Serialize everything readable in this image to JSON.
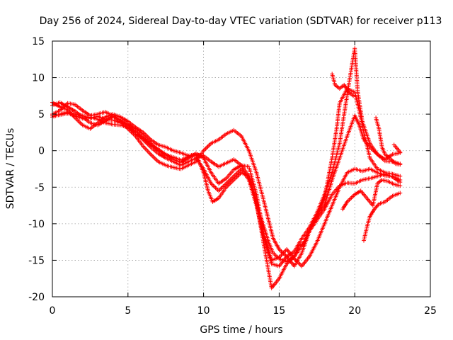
{
  "chart_data": {
    "type": "scatter",
    "title": "Day 256 of 2024, Sidereal Day-to-day VTEC variation (SDTVAR) for receiver p113",
    "xlabel": "GPS time / hours",
    "ylabel": "SDTVAR / TECUs",
    "xlim": [
      0,
      25
    ],
    "ylim": [
      -20,
      15
    ],
    "x_ticks": [
      0,
      5,
      10,
      15,
      20,
      25
    ],
    "y_ticks": [
      -20,
      -15,
      -10,
      -5,
      0,
      5,
      10,
      15
    ],
    "x_tick_labels": [
      "0",
      "5",
      "10",
      "15",
      "20",
      "25"
    ],
    "y_tick_labels": [
      "-20",
      "-15",
      "-10",
      "-5",
      "0",
      "5",
      "10",
      "15"
    ],
    "grid": true,
    "marker": "+",
    "color": "#ff0000",
    "series": [
      {
        "points": [
          [
            0,
            4.6
          ],
          [
            0.5,
            5.0
          ],
          [
            1,
            5.3
          ],
          [
            1.5,
            5.0
          ],
          [
            2,
            4.8
          ],
          [
            2.5,
            4.4
          ],
          [
            3,
            4.7
          ],
          [
            3.5,
            4.3
          ],
          [
            4,
            4.2
          ],
          [
            4.5,
            3.8
          ],
          [
            5,
            3.6
          ],
          [
            5.5,
            2.3
          ],
          [
            6,
            1.7
          ],
          [
            6.5,
            0.8
          ],
          [
            7,
            0.2
          ],
          [
            7.5,
            -0.6
          ],
          [
            8,
            -0.9
          ],
          [
            8.5,
            -1.3
          ],
          [
            9,
            -0.8
          ],
          [
            9.5,
            -0.5
          ],
          [
            10,
            -0.7
          ],
          [
            10.5,
            -1.5
          ],
          [
            11,
            -2.2
          ],
          [
            11.5,
            -1.7
          ],
          [
            12,
            -1.2
          ],
          [
            12.5,
            -2.0
          ],
          [
            13,
            -3.5
          ],
          [
            13.3,
            -5.5
          ],
          [
            13.6,
            -8.0
          ],
          [
            14,
            -10.5
          ],
          [
            14.3,
            -12.5
          ],
          [
            14.6,
            -14.0
          ],
          [
            15,
            -14.8
          ],
          [
            15.5,
            -15.2
          ],
          [
            16,
            -14.5
          ],
          [
            16.3,
            -13.0
          ],
          [
            16.6,
            -12.8
          ],
          [
            17,
            -11.0
          ],
          [
            17.5,
            -9.0
          ],
          [
            18,
            -7.5
          ],
          [
            18.5,
            -4.0
          ],
          [
            19,
            -1.0
          ],
          [
            19.5,
            2.0
          ],
          [
            20,
            4.8
          ],
          [
            20.3,
            3.5
          ],
          [
            20.6,
            1.5
          ],
          [
            21,
            0.5
          ],
          [
            21.5,
            -0.5
          ],
          [
            22,
            -1.4
          ],
          [
            22.5,
            -1.5
          ],
          [
            23,
            -1.8
          ]
        ]
      },
      {
        "points": [
          [
            0,
            6.2
          ],
          [
            0.5,
            6.6
          ],
          [
            1,
            6.0
          ],
          [
            1.5,
            5.4
          ],
          [
            2,
            4.6
          ],
          [
            2.5,
            3.8
          ],
          [
            3,
            3.5
          ],
          [
            3.5,
            4.1
          ],
          [
            4,
            4.7
          ],
          [
            4.5,
            4.2
          ],
          [
            5,
            3.5
          ],
          [
            5.5,
            3.0
          ],
          [
            6,
            2.0
          ],
          [
            6.5,
            1.0
          ],
          [
            7,
            0.0
          ],
          [
            7.5,
            -0.5
          ],
          [
            8,
            -1.2
          ],
          [
            8.5,
            -1.6
          ],
          [
            9,
            -1.0
          ],
          [
            9.5,
            -0.4
          ],
          [
            10,
            -1.0
          ],
          [
            10.5,
            -3.0
          ],
          [
            11,
            -4.5
          ],
          [
            11.5,
            -3.8
          ],
          [
            12,
            -2.6
          ],
          [
            12.5,
            -2.0
          ],
          [
            13,
            -2.2
          ],
          [
            13.5,
            -6.0
          ],
          [
            14,
            -11.5
          ],
          [
            14.5,
            -15.0
          ],
          [
            15,
            -14.6
          ],
          [
            15.5,
            -13.5
          ],
          [
            16,
            -14.8
          ],
          [
            16.5,
            -15.8
          ],
          [
            17,
            -14.5
          ],
          [
            17.5,
            -12.5
          ],
          [
            18,
            -10.0
          ],
          [
            18.5,
            -7.5
          ],
          [
            19,
            -5.0
          ],
          [
            19.5,
            -3.0
          ],
          [
            20,
            -2.5
          ],
          [
            20.5,
            -2.8
          ],
          [
            21,
            -2.5
          ],
          [
            21.5,
            -3.0
          ],
          [
            22,
            -3.4
          ],
          [
            22.5,
            -3.5
          ],
          [
            23,
            -4.0
          ]
        ]
      },
      {
        "points": [
          [
            0,
            6.6
          ],
          [
            0.5,
            6.0
          ],
          [
            1,
            5.6
          ],
          [
            1.5,
            4.5
          ],
          [
            2,
            3.5
          ],
          [
            2.5,
            3.0
          ],
          [
            3,
            3.8
          ],
          [
            3.5,
            4.6
          ],
          [
            4,
            5.0
          ],
          [
            4.5,
            4.6
          ],
          [
            5,
            4.0
          ],
          [
            5.5,
            3.2
          ],
          [
            6,
            2.5
          ],
          [
            6.5,
            1.5
          ],
          [
            7,
            0.8
          ],
          [
            7.5,
            0.5
          ],
          [
            8,
            0.0
          ],
          [
            8.5,
            -0.3
          ],
          [
            9,
            -0.7
          ],
          [
            9.5,
            -0.5
          ],
          [
            10,
            -3.0
          ],
          [
            10.3,
            -5.5
          ],
          [
            10.6,
            -7.0
          ],
          [
            11,
            -6.5
          ],
          [
            11.5,
            -5.0
          ],
          [
            12,
            -4.0
          ],
          [
            12.5,
            -3.0
          ],
          [
            13,
            -3.5
          ],
          [
            13.5,
            -7.0
          ],
          [
            14,
            -13.0
          ],
          [
            14.5,
            -18.8
          ],
          [
            15,
            -17.5
          ],
          [
            15.5,
            -15.5
          ],
          [
            16,
            -14.5
          ],
          [
            16.5,
            -13.0
          ],
          [
            17,
            -11.0
          ],
          [
            17.5,
            -9.5
          ],
          [
            18,
            -8.0
          ],
          [
            18.5,
            -6.0
          ],
          [
            19,
            -4.8
          ],
          [
            19.5,
            -4.4
          ],
          [
            20,
            -4.5
          ],
          [
            20.5,
            -4.0
          ],
          [
            21,
            -3.8
          ],
          [
            21.5,
            -3.5
          ],
          [
            22,
            -3.2
          ],
          [
            22.5,
            -3.6
          ],
          [
            23,
            -4.3
          ]
        ]
      },
      {
        "points": [
          [
            0,
            4.8
          ],
          [
            0.5,
            4.9
          ],
          [
            1,
            5.1
          ],
          [
            1.5,
            4.8
          ],
          [
            2,
            4.4
          ],
          [
            2.5,
            4.6
          ],
          [
            3,
            4.3
          ],
          [
            3.5,
            3.8
          ],
          [
            4,
            3.6
          ],
          [
            4.5,
            3.5
          ],
          [
            5,
            3.2
          ],
          [
            5.5,
            2.6
          ],
          [
            6,
            1.5
          ],
          [
            6.5,
            0.5
          ],
          [
            7,
            -0.4
          ],
          [
            7.5,
            -1.0
          ],
          [
            8,
            -1.5
          ],
          [
            8.5,
            -2.0
          ],
          [
            9,
            -1.5
          ],
          [
            9.5,
            -1.0
          ],
          [
            10,
            -2.5
          ],
          [
            10.5,
            -4.5
          ],
          [
            11,
            -5.5
          ],
          [
            11.5,
            -4.5
          ],
          [
            12,
            -3.5
          ],
          [
            12.5,
            -2.5
          ],
          [
            13,
            -4.0
          ],
          [
            13.5,
            -7.5
          ],
          [
            14,
            -12.0
          ],
          [
            14.5,
            -15.5
          ],
          [
            15,
            -15.8
          ],
          [
            15.5,
            -14.5
          ],
          [
            16,
            -13.8
          ],
          [
            16.5,
            -12.0
          ],
          [
            17,
            -10.5
          ],
          [
            17.5,
            -8.5
          ],
          [
            18,
            -6.0
          ],
          [
            18.5,
            -3.0
          ],
          [
            19,
            1.0
          ],
          [
            19.3,
            5.0
          ],
          [
            19.6,
            9.0
          ],
          [
            20,
            14.0
          ],
          [
            20.2,
            8.0
          ],
          [
            20.5,
            4.0
          ],
          [
            21,
            1.0
          ],
          [
            21.5,
            -0.5
          ],
          [
            22,
            -1.2
          ],
          [
            22.5,
            -0.5
          ],
          [
            23,
            -0.3
          ]
        ]
      },
      {
        "points": [
          [
            0,
            5.0
          ],
          [
            0.5,
            5.5
          ],
          [
            1,
            6.5
          ],
          [
            1.5,
            6.3
          ],
          [
            2,
            5.5
          ],
          [
            2.5,
            4.8
          ],
          [
            3,
            5.0
          ],
          [
            3.5,
            5.3
          ],
          [
            4,
            4.8
          ],
          [
            4.5,
            4.0
          ],
          [
            5,
            3.0
          ],
          [
            5.5,
            2.0
          ],
          [
            6,
            0.6
          ],
          [
            6.5,
            -0.5
          ],
          [
            7,
            -1.5
          ],
          [
            7.5,
            -2.0
          ],
          [
            8,
            -2.3
          ],
          [
            8.5,
            -2.5
          ],
          [
            9,
            -2.0
          ],
          [
            9.5,
            -1.5
          ],
          [
            10,
            0.0
          ],
          [
            10.5,
            1.0
          ],
          [
            11,
            1.5
          ],
          [
            11.5,
            2.3
          ],
          [
            12,
            2.8
          ],
          [
            12.5,
            2.0
          ],
          [
            13,
            0.0
          ],
          [
            13.5,
            -3.0
          ],
          [
            14,
            -7.0
          ],
          [
            14.3,
            -9.5
          ],
          [
            14.6,
            -12.0
          ],
          [
            15,
            -13.5
          ],
          [
            15.5,
            -14.5
          ],
          [
            16,
            -15.8
          ],
          [
            16.5,
            -14.0
          ],
          [
            17,
            -11.0
          ],
          [
            17.5,
            -9.0
          ],
          [
            18,
            -6.5
          ],
          [
            18.5,
            -1.0
          ],
          [
            18.8,
            3.0
          ],
          [
            19,
            6.5
          ],
          [
            19.5,
            8.5
          ],
          [
            20,
            8.0
          ],
          [
            20.3,
            5.5
          ],
          [
            20.6,
            2.5
          ],
          [
            21,
            -1.0
          ],
          [
            21.5,
            -2.5
          ],
          [
            22,
            -3.0
          ],
          [
            22.5,
            -3.2
          ],
          [
            23,
            -3.5
          ]
        ]
      },
      {
        "points": [
          [
            18.5,
            10.5
          ],
          [
            18.7,
            9.0
          ],
          [
            19,
            8.5
          ],
          [
            19.3,
            9.0
          ],
          [
            19.6,
            8.0
          ],
          [
            19.9,
            7.5
          ]
        ]
      },
      {
        "points": [
          [
            20.6,
            -12.3
          ],
          [
            20.8,
            -10.5
          ],
          [
            21,
            -9.0
          ],
          [
            21.3,
            -8.0
          ],
          [
            21.6,
            -7.3
          ],
          [
            22,
            -7.0
          ],
          [
            22.5,
            -6.2
          ],
          [
            23,
            -5.8
          ]
        ]
      },
      {
        "points": [
          [
            19.2,
            -8.0
          ],
          [
            19.5,
            -7.0
          ],
          [
            20,
            -6.0
          ],
          [
            20.4,
            -5.5
          ],
          [
            20.8,
            -6.5
          ],
          [
            21.2,
            -7.5
          ],
          [
            21.5,
            -4.5
          ],
          [
            21.8,
            -4.0
          ],
          [
            22.2,
            -4.2
          ],
          [
            22.6,
            -4.6
          ],
          [
            23,
            -4.8
          ]
        ]
      },
      {
        "points": [
          [
            21.4,
            4.5
          ],
          [
            21.6,
            3.0
          ],
          [
            21.8,
            0.5
          ],
          [
            22,
            -0.5
          ],
          [
            22.3,
            -1.0
          ],
          [
            22.7,
            -1.8
          ],
          [
            23,
            -1.9
          ]
        ]
      },
      {
        "points": [
          [
            22.6,
            0.8
          ],
          [
            22.8,
            0.3
          ],
          [
            23,
            -0.2
          ]
        ]
      }
    ]
  }
}
